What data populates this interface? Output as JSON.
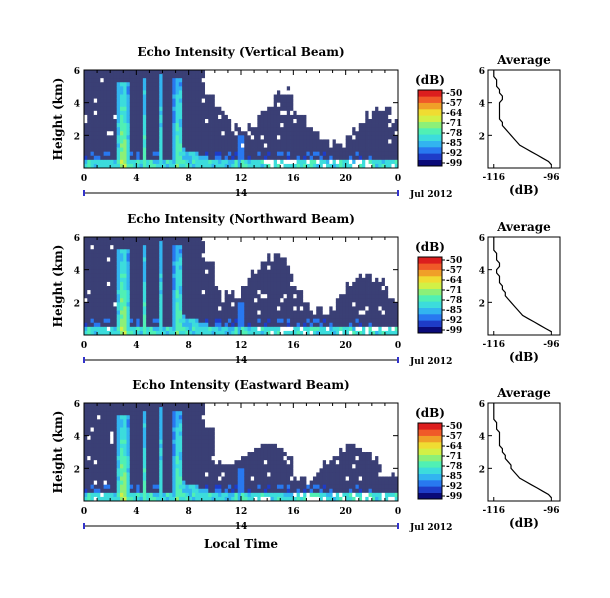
{
  "chart_data": [
    {
      "type": "heatmap",
      "title": "Echo Intensity (Vertical Beam)",
      "ylabel": "Height (km)",
      "xlabel": "",
      "x_ticks": [
        "0",
        "4",
        "8",
        "12",
        "16",
        "20",
        "0"
      ],
      "y_ticks": [
        "6",
        "4",
        "2"
      ],
      "date_label": "14",
      "month_label": "Jul 2012",
      "xlim": [
        0,
        24
      ],
      "ylim": [
        0,
        6
      ],
      "colorbar": {
        "unit": "(dB)",
        "ticks": [
          "-50",
          "-57",
          "-64",
          "-71",
          "-78",
          "-85",
          "-92",
          "-99"
        ],
        "range": [
          -99,
          -50
        ]
      },
      "profile": {
        "title": "Average",
        "xlabel": "(dB)",
        "x_ticks": [
          "-116",
          "-96"
        ],
        "y_ticks": [
          "6",
          "4",
          "2"
        ],
        "xlim": [
          -118,
          -93
        ],
        "ylim": [
          0,
          6
        ],
        "height_km": [
          0.2,
          0.4,
          0.6,
          0.8,
          1.0,
          1.2,
          1.4,
          1.6,
          1.8,
          2.0,
          2.2,
          2.4,
          2.6,
          2.8,
          3.0,
          3.2,
          3.4,
          3.6,
          3.8,
          4.0,
          4.2,
          4.4,
          4.6,
          4.8,
          5.0,
          5.2,
          5.4,
          5.6,
          5.8,
          6.0
        ],
        "intensity_db": [
          -96,
          -97,
          -99,
          -101,
          -103,
          -105,
          -107,
          -108,
          -109,
          -110,
          -111,
          -112,
          -113,
          -113,
          -114,
          -114,
          -114,
          -114,
          -114,
          -114,
          -113,
          -113,
          -114,
          -114,
          -115,
          -115,
          -115,
          -116,
          -116,
          -116
        ]
      }
    },
    {
      "type": "heatmap",
      "title": "Echo Intensity (Northward Beam)",
      "ylabel": "Height (km)",
      "xlabel": "",
      "x_ticks": [
        "0",
        "4",
        "8",
        "12",
        "16",
        "20",
        "0"
      ],
      "y_ticks": [
        "6",
        "4",
        "2"
      ],
      "date_label": "14",
      "month_label": "Jul 2012",
      "xlim": [
        0,
        24
      ],
      "ylim": [
        0,
        6
      ],
      "colorbar": {
        "unit": "(dB)",
        "ticks": [
          "-50",
          "-57",
          "-64",
          "-71",
          "-78",
          "-85",
          "-92",
          "-99"
        ],
        "range": [
          -99,
          -50
        ]
      },
      "profile": {
        "title": "Average",
        "xlabel": "(dB)",
        "x_ticks": [
          "-116",
          "-96"
        ],
        "y_ticks": [
          "6",
          "4",
          "2"
        ],
        "xlim": [
          -118,
          -93
        ],
        "ylim": [
          0,
          6
        ],
        "height_km": [
          0.2,
          0.4,
          0.6,
          0.8,
          1.0,
          1.2,
          1.4,
          1.6,
          1.8,
          2.0,
          2.2,
          2.4,
          2.6,
          2.8,
          3.0,
          3.2,
          3.4,
          3.6,
          3.8,
          4.0,
          4.2,
          4.4,
          4.6,
          4.8,
          5.0,
          5.2,
          5.4,
          5.6,
          5.8,
          6.0
        ],
        "intensity_db": [
          -96,
          -98,
          -100,
          -102,
          -104,
          -106,
          -107,
          -108,
          -109,
          -110,
          -111,
          -112,
          -112,
          -113,
          -113,
          -114,
          -114,
          -114,
          -115,
          -115,
          -114,
          -114,
          -115,
          -115,
          -115,
          -116,
          -116,
          -116,
          -116,
          -116
        ]
      }
    },
    {
      "type": "heatmap",
      "title": "Echo Intensity (Eastward Beam)",
      "ylabel": "Height (km)",
      "xlabel": "Local Time",
      "x_ticks": [
        "0",
        "4",
        "8",
        "12",
        "16",
        "20",
        "0"
      ],
      "y_ticks": [
        "6",
        "4",
        "2"
      ],
      "date_label": "14",
      "month_label": "Jul 2012",
      "xlim": [
        0,
        24
      ],
      "ylim": [
        0,
        6
      ],
      "colorbar": {
        "unit": "(dB)",
        "ticks": [
          "-50",
          "-57",
          "-64",
          "-71",
          "-78",
          "-85",
          "-92",
          "-99"
        ],
        "range": [
          -99,
          -50
        ]
      },
      "profile": {
        "title": "Average",
        "xlabel": "(dB)",
        "x_ticks": [
          "-116",
          "-96"
        ],
        "y_ticks": [
          "6",
          "4",
          "2"
        ],
        "xlim": [
          -118,
          -93
        ],
        "ylim": [
          0,
          6
        ],
        "height_km": [
          0.2,
          0.4,
          0.6,
          0.8,
          1.0,
          1.2,
          1.4,
          1.6,
          1.8,
          2.0,
          2.2,
          2.4,
          2.6,
          2.8,
          3.0,
          3.2,
          3.4,
          3.6,
          3.8,
          4.0,
          4.2,
          4.4,
          4.6,
          4.8,
          5.0,
          5.2,
          5.4,
          5.6,
          5.8,
          6.0
        ],
        "intensity_db": [
          -96,
          -97,
          -99,
          -101,
          -103,
          -105,
          -107,
          -108,
          -109,
          -110,
          -110,
          -111,
          -112,
          -112,
          -113,
          -113,
          -114,
          -114,
          -114,
          -114,
          -114,
          -115,
          -115,
          -115,
          -116,
          -116,
          -116,
          -116,
          -116,
          -116
        ]
      }
    }
  ],
  "colors": {
    "background_echo": "#3a3f75",
    "no_data": "#ffffff",
    "colormap": [
      "#0a0a78",
      "#1e3cc8",
      "#2878f0",
      "#32b4f0",
      "#3cdcdc",
      "#50f0b4",
      "#8cf078",
      "#d2f046",
      "#f0dc32",
      "#f0a028",
      "#f05a28",
      "#dc1e1e"
    ]
  }
}
